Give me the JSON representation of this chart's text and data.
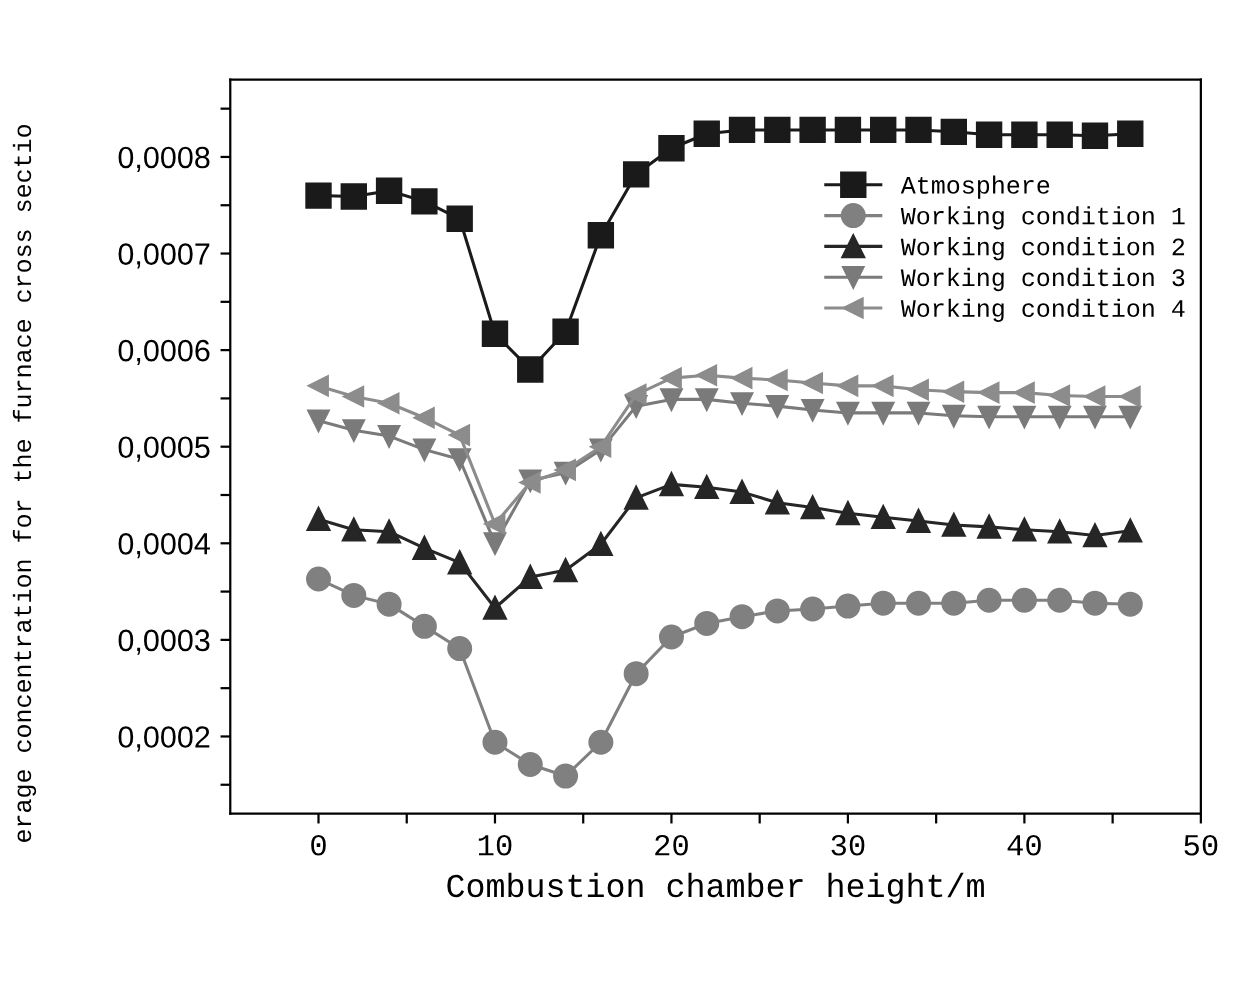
{
  "chart_data": {
    "type": "line",
    "xlabel": "Combustion chamber height/m",
    "ylabel": "erage concentration for the furnace cross sectio",
    "x": [
      0,
      2,
      4,
      6,
      8,
      10,
      12,
      14,
      16,
      18,
      20,
      22,
      24,
      26,
      28,
      30,
      32,
      34,
      36,
      38,
      40,
      42,
      44,
      46
    ],
    "series": [
      {
        "name": "Atmosphere",
        "color": "#1a1a1a",
        "marker": "square",
        "values": [
          0.00076,
          0.000759,
          0.000765,
          0.000754,
          0.000736,
          0.000617,
          0.00058,
          0.000619,
          0.000719,
          0.000782,
          0.000809,
          0.000824,
          0.000828,
          0.000828,
          0.000828,
          0.000828,
          0.000828,
          0.000828,
          0.000826,
          0.000823,
          0.000823,
          0.000823,
          0.000822,
          0.000824
        ]
      },
      {
        "name": "Working condition 1",
        "color": "#808080",
        "marker": "circle",
        "values": [
          0.000363,
          0.000346,
          0.000337,
          0.000314,
          0.000291,
          0.000194,
          0.000171,
          0.000159,
          0.000194,
          0.000265,
          0.000303,
          0.000317,
          0.000324,
          0.00033,
          0.000332,
          0.000335,
          0.000338,
          0.000338,
          0.000338,
          0.000341,
          0.000341,
          0.000341,
          0.000338,
          0.000337
        ]
      },
      {
        "name": "Working condition 2",
        "color": "#262626",
        "marker": "triangle",
        "values": [
          0.000425,
          0.000414,
          0.000412,
          0.000395,
          0.00038,
          0.000333,
          0.000365,
          0.000372,
          0.000399,
          0.000447,
          0.000461,
          0.000458,
          0.000453,
          0.000442,
          0.000437,
          0.000431,
          0.000427,
          0.000423,
          0.000419,
          0.000417,
          0.000414,
          0.000412,
          0.000408,
          0.000413
        ]
      },
      {
        "name": "Working condition 3",
        "color": "#7a7a7a",
        "marker": "triangle-down",
        "values": [
          0.000527,
          0.000517,
          0.000511,
          0.000497,
          0.000487,
          0.0004,
          0.000465,
          0.000473,
          0.000497,
          0.000542,
          0.000549,
          0.000549,
          0.000545,
          0.000542,
          0.000538,
          0.000535,
          0.000535,
          0.000535,
          0.000532,
          0.000531,
          0.000531,
          0.000531,
          0.000531,
          0.000531
        ]
      },
      {
        "name": "Working condition 4",
        "color": "#8c8c8c",
        "marker": "triangle-left",
        "values": [
          0.000563,
          0.000552,
          0.000545,
          0.00053,
          0.000512,
          0.00042,
          0.000463,
          0.000476,
          0.0005,
          0.000554,
          0.000571,
          0.000574,
          0.000571,
          0.000569,
          0.000566,
          0.000563,
          0.000563,
          0.000559,
          0.000557,
          0.000556,
          0.000556,
          0.000553,
          0.000552,
          0.000552
        ]
      }
    ],
    "xlim": [
      -5,
      50
    ],
    "xticks": [
      0,
      {
        "value": 5,
        "label": null
      },
      10,
      {
        "value": 15,
        "label": null
      },
      20,
      {
        "value": 25,
        "label": null
      },
      30,
      {
        "value": 35,
        "label": null
      },
      40,
      {
        "value": 45,
        "label": null
      },
      50
    ],
    "ylim": [
      0.00012,
      0.00088
    ],
    "yticks": [
      {
        "value": 0.00015,
        "label": null
      },
      {
        "value": 0.0002,
        "label": "0,0002"
      },
      {
        "value": 0.00025,
        "label": null
      },
      {
        "value": 0.0003,
        "label": "0,0003"
      },
      {
        "value": 0.00035,
        "label": null
      },
      {
        "value": 0.0004,
        "label": "0,0004"
      },
      {
        "value": 0.00045,
        "label": null
      },
      {
        "value": 0.0005,
        "label": "0,0005"
      },
      {
        "value": 0.00055,
        "label": null
      },
      {
        "value": 0.0006,
        "label": "0,0006"
      },
      {
        "value": 0.00065,
        "label": null
      },
      {
        "value": 0.0007,
        "label": "0,0007"
      },
      {
        "value": 0.00075,
        "label": null
      },
      {
        "value": 0.0008,
        "label": "0,0008"
      },
      {
        "value": 0.00085,
        "label": null
      }
    ],
    "legend": "top right",
    "grid": false,
    "line_style": "solid"
  }
}
